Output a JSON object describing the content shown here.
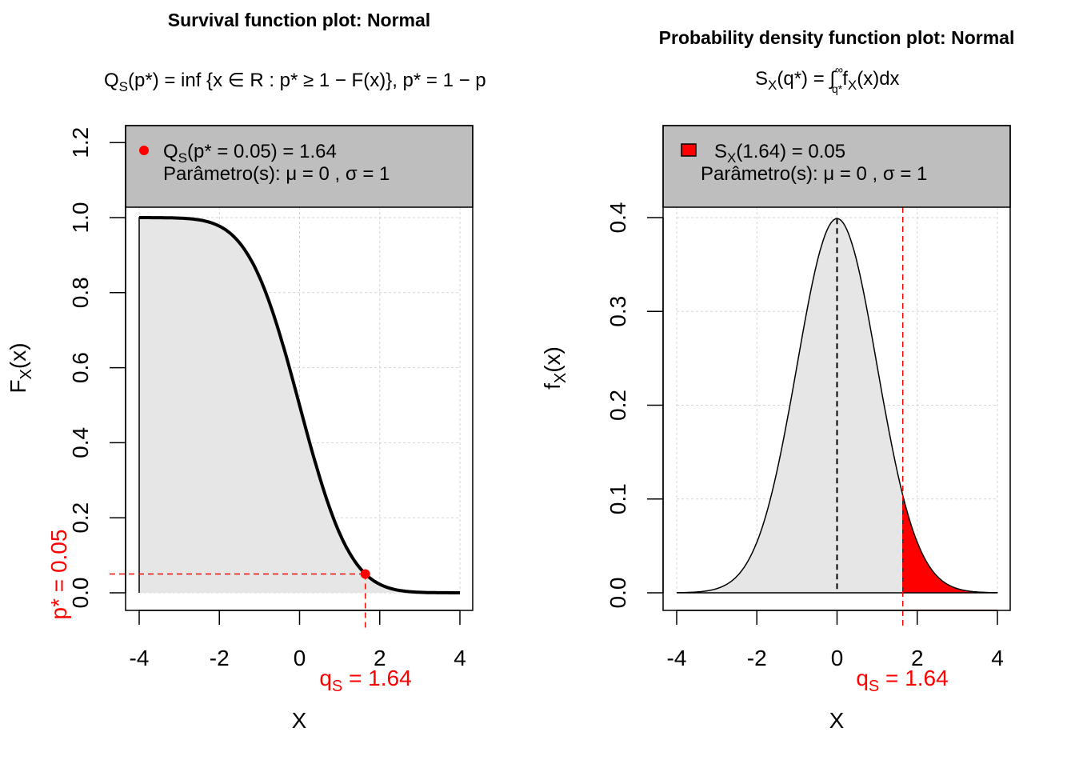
{
  "colors": {
    "accent": "#ff0000",
    "fill": "#e6e6e6",
    "legend_bg": "#bebebe",
    "grid": "#d3d3d3"
  },
  "chart_data": [
    {
      "type": "area",
      "title": "Survival function plot: Normal",
      "subtitle": {
        "lhs": "Q",
        "lhs_sub": "S",
        "body": "(p*) = inf {x ∈ R : p* ≥ 1 − F(x)}, p* = 1 − p"
      },
      "function": "survival",
      "params": {
        "mu": 0,
        "sigma": 1
      },
      "xlabel": "X",
      "ylabel": {
        "main": "F",
        "sub": "X",
        "rest": "(x)"
      },
      "xlim": [
        -4,
        4
      ],
      "ylim": [
        0,
        1.2
      ],
      "xticks": [
        "-4",
        "-2",
        "0",
        "2",
        "4"
      ],
      "xtick_values": [
        -4,
        -2,
        0,
        2,
        4
      ],
      "yticks": [
        "0.0",
        "0.2",
        "0.4",
        "0.6",
        "0.8",
        "1.0",
        "1.2"
      ],
      "ytick_values": [
        0,
        0.2,
        0.4,
        0.6,
        0.8,
        1.0,
        1.2
      ],
      "grid": true,
      "point": {
        "x": 1.64,
        "y": 0.05
      },
      "legend": {
        "line1_main": "Q",
        "line1_sub": "S",
        "line1_rest": "(p* = 0.05) = 1.64",
        "line2": "Parâmetro(s): μ = 0 , σ = 1",
        "placement": "top"
      },
      "annotations": {
        "q_label": "q",
        "q_sub": "S",
        "q_rest": " = 1.64",
        "p_label": "p* = 0.05"
      }
    },
    {
      "type": "area",
      "title": "Probability density function plot: Normal",
      "subtitle": {
        "lhs": "S",
        "lhs_sub": "X",
        "body": "(q*) = ∫",
        "upper": "∞",
        "lower": "q*",
        "tail": "f",
        "tail_sub": "X",
        "tail_rest": "(x)dx"
      },
      "function": "pdf",
      "params": {
        "mu": 0,
        "sigma": 1
      },
      "xlabel": "X",
      "ylabel": {
        "main": "f",
        "sub": "X",
        "rest": "(x)"
      },
      "xlim": [
        -4,
        4
      ],
      "ylim": [
        0,
        0.4
      ],
      "xticks": [
        "-4",
        "-2",
        "0",
        "2",
        "4"
      ],
      "xtick_values": [
        -4,
        -2,
        0,
        2,
        4
      ],
      "yticks": [
        "0.0",
        "0.1",
        "0.2",
        "0.3",
        "0.4"
      ],
      "ytick_values": [
        0,
        0.1,
        0.2,
        0.3,
        0.4
      ],
      "grid": true,
      "shaded_from": 1.64,
      "mean_line": 0,
      "legend": {
        "line1_main": "S",
        "line1_sub": "X",
        "line1_rest": "(1.64) = 0.05",
        "line2": "Parâmetro(s): μ = 0 , σ = 1",
        "placement": "top"
      },
      "annotations": {
        "q_label": "q",
        "q_sub": "S",
        "q_rest": " = 1.64"
      }
    }
  ]
}
